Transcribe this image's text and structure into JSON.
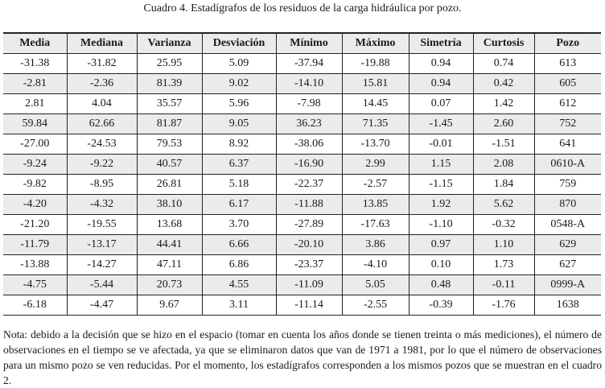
{
  "caption": "Cuadro 4. Estadígrafos de los residuos de la carga hidráulica por pozo.",
  "table": {
    "headers": [
      "Media",
      "Mediana",
      "Varianza",
      "Desviación",
      "Mínimo",
      "Máximo",
      "Simetría",
      "Curtosis",
      "Pozo"
    ],
    "rows": [
      [
        "-31.38",
        "-31.82",
        "25.95",
        "5.09",
        "-37.94",
        "-19.88",
        "0.94",
        "0.74",
        "613"
      ],
      [
        "-2.81",
        "-2.36",
        "81.39",
        "9.02",
        "-14.10",
        "15.81",
        "0.94",
        "0.42",
        "605"
      ],
      [
        "2.81",
        "4.04",
        "35.57",
        "5.96",
        "-7.98",
        "14.45",
        "0.07",
        "1.42",
        "612"
      ],
      [
        "59.84",
        "62.66",
        "81.87",
        "9.05",
        "36.23",
        "71.35",
        "-1.45",
        "2.60",
        "752"
      ],
      [
        "-27.00",
        "-24.53",
        "79.53",
        "8.92",
        "-38.06",
        "-13.70",
        "-0.01",
        "-1.51",
        "641"
      ],
      [
        "-9.24",
        "-9.22",
        "40.57",
        "6.37",
        "-16.90",
        "2.99",
        "1.15",
        "2.08",
        "0610-A"
      ],
      [
        "-9.82",
        "-8.95",
        "26.81",
        "5.18",
        "-22.37",
        "-2.57",
        "-1.15",
        "1.84",
        "759"
      ],
      [
        "-4.20",
        "-4.32",
        "38.10",
        "6.17",
        "-11.88",
        "13.85",
        "1.92",
        "5.62",
        "870"
      ],
      [
        "-21.20",
        "-19.55",
        "13.68",
        "3.70",
        "-27.89",
        "-17.63",
        "-1.10",
        "-0.32",
        "0548-A"
      ],
      [
        "-11.79",
        "-13.17",
        "44.41",
        "6.66",
        "-20.10",
        "3.86",
        "0.97",
        "1.10",
        "629"
      ],
      [
        "-13.88",
        "-14.27",
        "47.11",
        "6.86",
        "-23.37",
        "-4.10",
        "0.10",
        "1.73",
        "627"
      ],
      [
        "-4.75",
        "-5.44",
        "20.73",
        "4.55",
        "-11.09",
        "5.05",
        "0.48",
        "-0.11",
        "0999-A"
      ],
      [
        "-6.18",
        "-4.47",
        "9.67",
        "3.11",
        "-11.14",
        "-2.55",
        "-0.39",
        "-1.76",
        "1638"
      ]
    ]
  },
  "note": "Nota: debido a la decisión que se hizo en el espacio (tomar en cuenta los años donde se tienen treinta o más mediciones), el número de observaciones en el tiempo se ve afectada, ya que se eliminaron datos que van de 1971 a 1981, por lo que el número de observaciones para un mismo pozo se ven reducidas. Por el momento, los estadígrafos corresponden a los mismos pozos que se muestran en el cuadro 2."
}
